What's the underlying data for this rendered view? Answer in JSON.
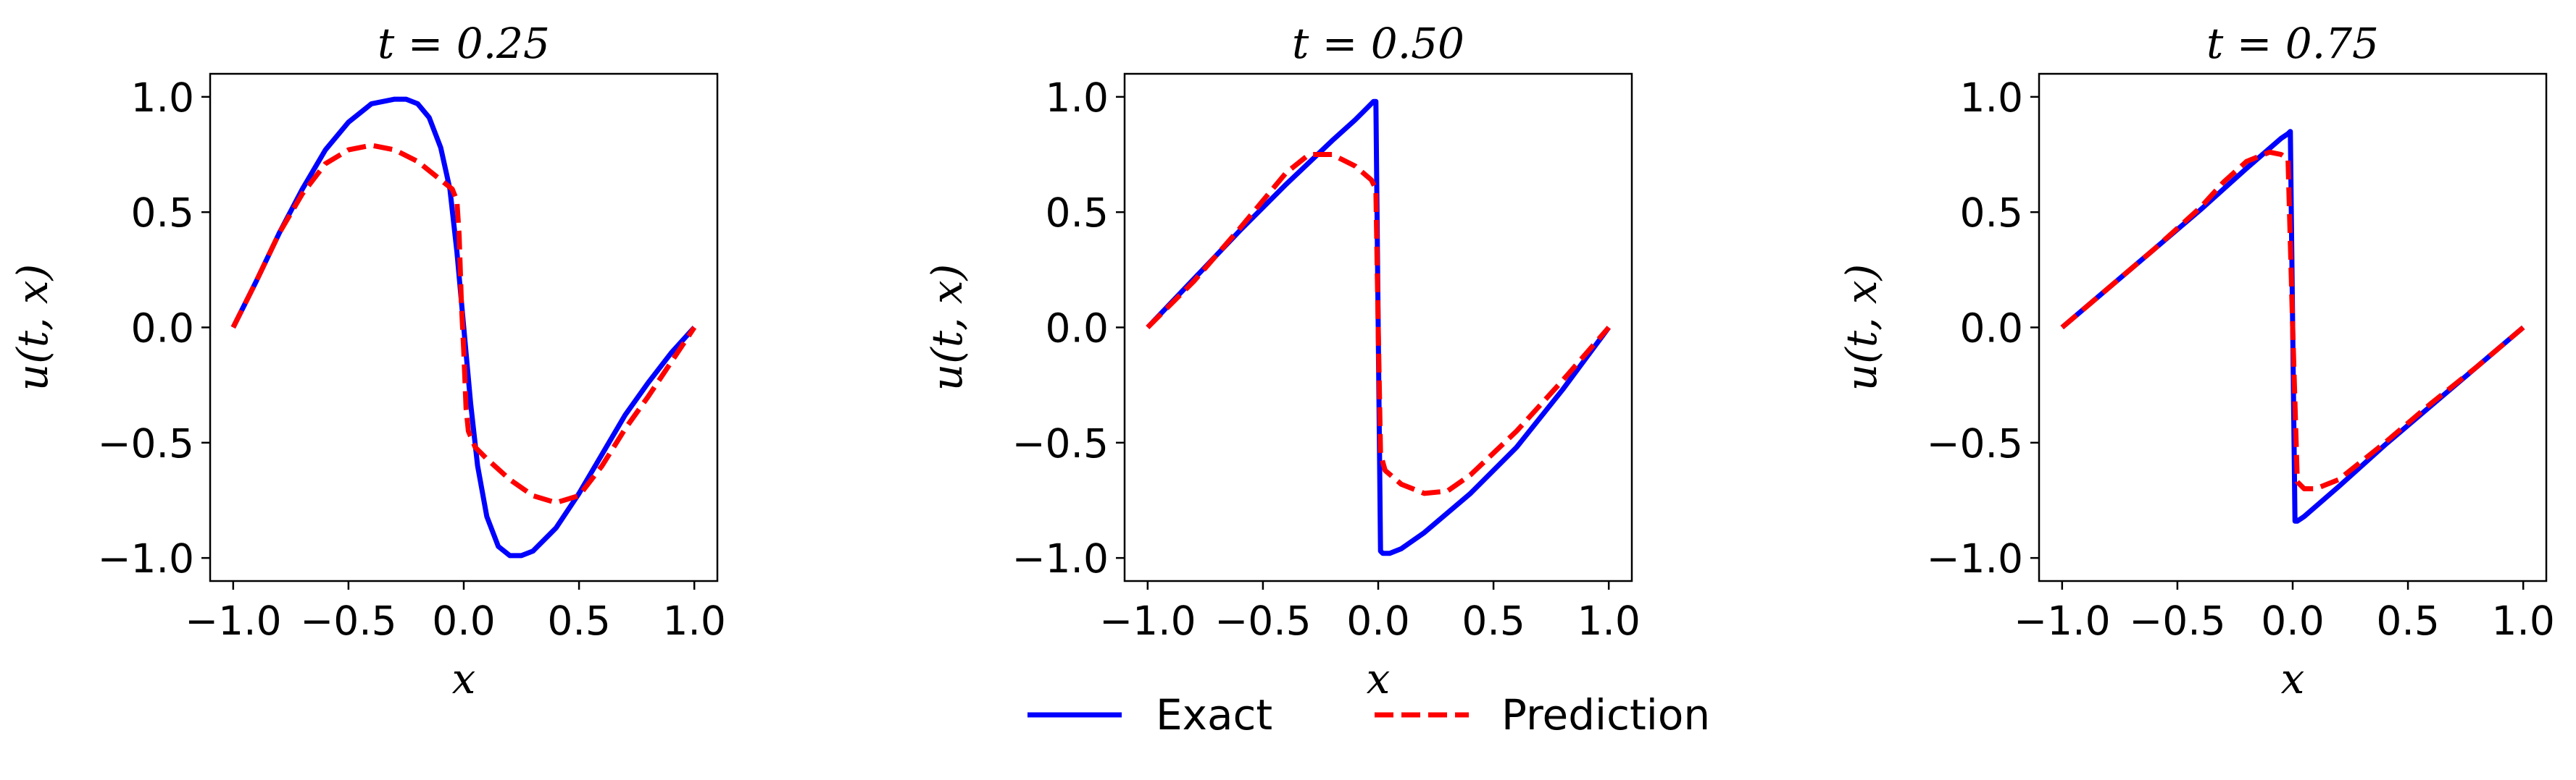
{
  "chart_data": [
    {
      "type": "line",
      "title": "t = 0.25",
      "xlabel": "x",
      "ylabel": "u(t, x)",
      "xlim": [
        -1.1,
        1.1
      ],
      "ylim": [
        -1.1,
        1.1
      ],
      "xticks": [
        "−1.0",
        "−0.5",
        "0.0",
        "0.5",
        "1.0"
      ],
      "yticks": [
        "1.0",
        "0.5",
        "0.0",
        "−0.5",
        "−1.0"
      ],
      "grid": false,
      "series": [
        {
          "name": "Exact",
          "style": "solid",
          "color": "#0000ff",
          "x": [
            -1.0,
            -0.9,
            -0.8,
            -0.7,
            -0.6,
            -0.5,
            -0.4,
            -0.3,
            -0.25,
            -0.2,
            -0.15,
            -0.1,
            -0.06,
            -0.03,
            0.0,
            0.03,
            0.06,
            0.1,
            0.15,
            0.2,
            0.25,
            0.3,
            0.4,
            0.5,
            0.6,
            0.7,
            0.8,
            0.9,
            1.0
          ],
          "y": [
            0.0,
            0.2,
            0.41,
            0.6,
            0.77,
            0.89,
            0.97,
            0.99,
            0.99,
            0.97,
            0.91,
            0.78,
            0.6,
            0.33,
            0.0,
            -0.33,
            -0.6,
            -0.82,
            -0.95,
            -0.99,
            -0.99,
            -0.97,
            -0.87,
            -0.72,
            -0.55,
            -0.38,
            -0.24,
            -0.11,
            0.0
          ]
        },
        {
          "name": "Prediction",
          "style": "dashed",
          "color": "#ff0000",
          "x": [
            -1.0,
            -0.9,
            -0.8,
            -0.7,
            -0.6,
            -0.5,
            -0.4,
            -0.3,
            -0.2,
            -0.1,
            -0.05,
            -0.03,
            -0.02,
            -0.01,
            0.0,
            0.01,
            0.02,
            0.05,
            0.1,
            0.2,
            0.3,
            0.4,
            0.5,
            0.6,
            0.7,
            0.8,
            0.9,
            1.0
          ],
          "y": [
            0.0,
            0.2,
            0.41,
            0.58,
            0.71,
            0.77,
            0.79,
            0.77,
            0.72,
            0.64,
            0.6,
            0.55,
            0.4,
            0.1,
            -0.1,
            -0.35,
            -0.45,
            -0.52,
            -0.57,
            -0.66,
            -0.73,
            -0.76,
            -0.73,
            -0.6,
            -0.44,
            -0.3,
            -0.15,
            0.0
          ]
        }
      ]
    },
    {
      "type": "line",
      "title": "t = 0.50",
      "xlabel": "x",
      "ylabel": "u(t, x)",
      "xlim": [
        -1.1,
        1.1
      ],
      "ylim": [
        -1.1,
        1.1
      ],
      "xticks": [
        "−1.0",
        "−0.5",
        "0.0",
        "0.5",
        "1.0"
      ],
      "yticks": [
        "1.0",
        "0.5",
        "0.0",
        "−0.5",
        "−1.0"
      ],
      "grid": false,
      "series": [
        {
          "name": "Exact",
          "style": "solid",
          "color": "#0000ff",
          "x": [
            -1.0,
            -0.8,
            -0.6,
            -0.4,
            -0.2,
            -0.1,
            -0.05,
            -0.02,
            -0.01,
            0.0,
            0.01,
            0.02,
            0.05,
            0.1,
            0.2,
            0.4,
            0.6,
            0.8,
            1.0
          ],
          "y": [
            0.0,
            0.21,
            0.42,
            0.62,
            0.81,
            0.9,
            0.95,
            0.98,
            0.98,
            0.0,
            -0.97,
            -0.98,
            -0.98,
            -0.96,
            -0.89,
            -0.72,
            -0.52,
            -0.27,
            0.0
          ]
        },
        {
          "name": "Prediction",
          "style": "dashed",
          "color": "#ff0000",
          "x": [
            -1.0,
            -0.8,
            -0.6,
            -0.4,
            -0.3,
            -0.2,
            -0.1,
            -0.03,
            -0.01,
            0.0,
            0.01,
            0.03,
            0.1,
            0.2,
            0.3,
            0.4,
            0.6,
            0.8,
            1.0
          ],
          "y": [
            0.0,
            0.2,
            0.43,
            0.67,
            0.75,
            0.75,
            0.7,
            0.64,
            0.6,
            0.0,
            -0.55,
            -0.62,
            -0.68,
            -0.72,
            -0.71,
            -0.64,
            -0.45,
            -0.23,
            0.0
          ]
        }
      ]
    },
    {
      "type": "line",
      "title": "t = 0.75",
      "xlabel": "x",
      "ylabel": "u(t, x)",
      "xlim": [
        -1.1,
        1.1
      ],
      "ylim": [
        -1.1,
        1.1
      ],
      "xticks": [
        "−1.0",
        "−0.5",
        "0.0",
        "0.5",
        "1.0"
      ],
      "yticks": [
        "1.0",
        "0.5",
        "0.0",
        "−0.5",
        "−1.0"
      ],
      "grid": false,
      "series": [
        {
          "name": "Exact",
          "style": "solid",
          "color": "#0000ff",
          "x": [
            -1.0,
            -0.8,
            -0.6,
            -0.4,
            -0.2,
            -0.05,
            -0.02,
            -0.01,
            0.0,
            0.01,
            0.02,
            0.05,
            0.2,
            0.4,
            0.6,
            0.8,
            1.0
          ],
          "y": [
            0.0,
            0.17,
            0.34,
            0.51,
            0.69,
            0.82,
            0.84,
            0.85,
            0.0,
            -0.84,
            -0.84,
            -0.82,
            -0.69,
            -0.51,
            -0.34,
            -0.17,
            0.0
          ]
        },
        {
          "name": "Prediction",
          "style": "dashed",
          "color": "#ff0000",
          "x": [
            -1.0,
            -0.8,
            -0.6,
            -0.4,
            -0.3,
            -0.2,
            -0.1,
            -0.05,
            -0.02,
            0.0,
            0.02,
            0.05,
            0.1,
            0.2,
            0.4,
            0.6,
            0.8,
            1.0
          ],
          "y": [
            0.0,
            0.17,
            0.34,
            0.52,
            0.63,
            0.72,
            0.76,
            0.75,
            0.73,
            0.0,
            -0.67,
            -0.7,
            -0.7,
            -0.66,
            -0.5,
            -0.33,
            -0.17,
            0.0
          ]
        }
      ]
    }
  ],
  "legend": {
    "placement": "bottom-center",
    "entries": [
      {
        "label": "Exact",
        "style": "solid",
        "color": "#0000ff"
      },
      {
        "label": "Prediction",
        "style": "dashed",
        "color": "#ff0000"
      }
    ]
  }
}
